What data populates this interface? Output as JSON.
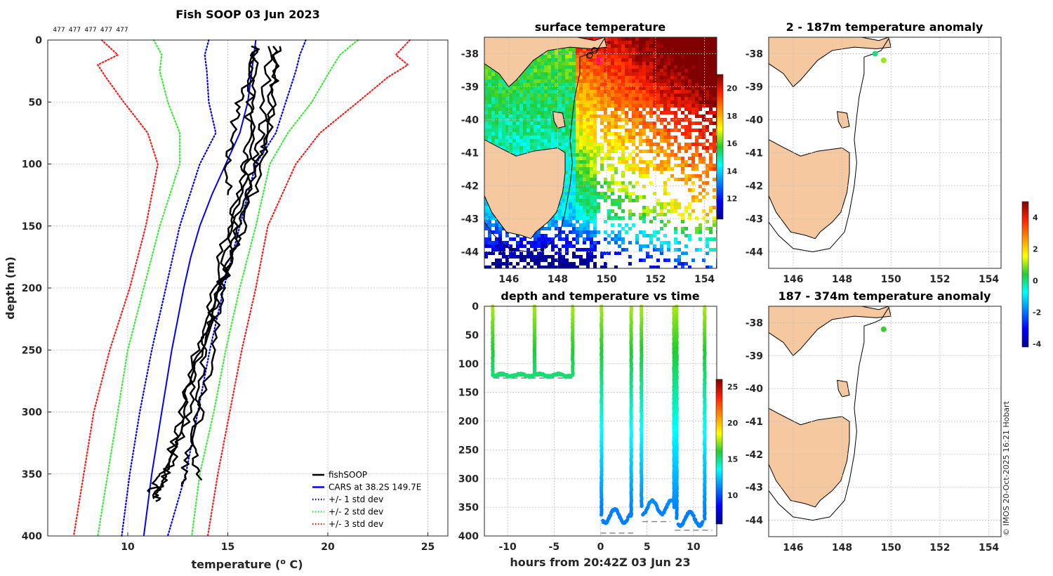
{
  "figure": {
    "main_title": "Fish SOOP 03 Jun 2023",
    "drop_ids": [
      "477",
      "477",
      "477",
      "477",
      "477"
    ],
    "copyright": "© IMOS 20-Oct-2025 16:21 Hobart"
  },
  "colors": {
    "fishsoop": "#000000",
    "cars": "#0000ff",
    "std1": "#0000ff",
    "std2": "#33ee33",
    "std3": "#ff1a1a",
    "land": "#f6c89f",
    "grid": "#bfbfbf",
    "dashes": "#808080"
  },
  "chart_data": [
    {
      "id": "profile",
      "type": "line",
      "title": "Fish SOOP 03 Jun 2023",
      "xlabel": "temperature (°C)",
      "ylabel": "depth (m)",
      "xlim": [
        6,
        26
      ],
      "ylim": [
        0,
        400
      ],
      "y_reversed": true,
      "xticks": [
        10,
        15,
        20,
        25
      ],
      "yticks": [
        0,
        50,
        100,
        150,
        200,
        250,
        300,
        350,
        400
      ],
      "legend_position": "bottom-right",
      "legend": [
        {
          "label": "fishSOOP",
          "style": "solid",
          "color": "#000000"
        },
        {
          "label": "CARS at 38.2S 149.7E",
          "style": "solid",
          "color": "#0000ff"
        },
        {
          "label": "+/- 1 std dev",
          "style": "dotted",
          "color": "#0000ff"
        },
        {
          "label": "+/- 2 std dev",
          "style": "dotted",
          "color": "#33ee33"
        },
        {
          "label": "+/- 3 std dev",
          "style": "dotted",
          "color": "#ff1a1a"
        }
      ],
      "cars": {
        "depth": [
          0,
          25,
          50,
          75,
          100,
          125,
          150,
          175,
          200,
          225,
          250,
          275,
          300,
          325,
          350,
          375,
          400
        ],
        "temp": [
          16.4,
          16.2,
          16.0,
          15.6,
          14.9,
          14.2,
          13.6,
          13.15,
          12.8,
          12.5,
          12.2,
          11.95,
          11.7,
          11.45,
          11.2,
          11.0,
          10.8
        ]
      },
      "std_bands": [
        {
          "name": "std1",
          "depth": [
            0,
            12,
            25,
            50,
            75,
            100,
            150,
            200,
            250,
            300,
            350,
            400
          ],
          "minus": [
            14.05,
            13.85,
            13.95,
            14.05,
            14.4,
            13.6,
            12.6,
            11.9,
            11.2,
            10.6,
            10.1,
            9.7
          ],
          "plus": [
            18.9,
            18.6,
            18.4,
            17.9,
            17.4,
            16.4,
            15.6,
            14.8,
            14.1,
            13.5,
            12.9,
            12.0
          ]
        },
        {
          "name": "std2",
          "depth": [
            0,
            12,
            25,
            50,
            75,
            100,
            150,
            200,
            250,
            300,
            350,
            400
          ],
          "minus": [
            11.3,
            11.7,
            11.6,
            12.0,
            12.6,
            12.6,
            11.6,
            10.8,
            10.0,
            9.5,
            9.0,
            8.5
          ],
          "plus": [
            21.5,
            20.6,
            20.1,
            19.2,
            18.0,
            17.1,
            16.4,
            15.6,
            14.9,
            14.3,
            13.6,
            13.2
          ]
        },
        {
          "name": "std3",
          "depth": [
            0,
            12,
            20,
            30,
            50,
            75,
            100,
            150,
            200,
            250,
            300,
            350,
            400
          ],
          "minus": [
            8.7,
            9.5,
            8.5,
            8.9,
            9.8,
            11.0,
            11.5,
            10.9,
            10.1,
            9.1,
            8.3,
            7.8,
            7.3
          ],
          "plus": [
            24.1,
            23.4,
            24.0,
            23.0,
            21.5,
            19.6,
            18.4,
            17.0,
            16.4,
            15.7,
            15.1,
            14.5,
            14.0
          ]
        }
      ],
      "casts": [
        {
          "depth": [
            5,
            30,
            60,
            90,
            125
          ],
          "temp": [
            16.4,
            16.0,
            15.4,
            15.0,
            15.0
          ]
        },
        {
          "depth": [
            5,
            40,
            80,
            100,
            150,
            200,
            250,
            300,
            340,
            370
          ],
          "temp": [
            17.5,
            17.3,
            17.0,
            16.3,
            15.8,
            14.6,
            13.6,
            13.1,
            12.2,
            11.3
          ]
        },
        {
          "depth": [
            5,
            50,
            90,
            120,
            160,
            210,
            260,
            310,
            350,
            365
          ],
          "temp": [
            16.5,
            16.1,
            15.9,
            15.6,
            14.8,
            14.2,
            13.3,
            12.6,
            11.8,
            11.1
          ]
        },
        {
          "depth": [
            5,
            45,
            95,
            140,
            180,
            230,
            280,
            320,
            360,
            372
          ],
          "temp": [
            17.4,
            17.2,
            16.9,
            15.9,
            15.0,
            14.0,
            13.0,
            12.4,
            11.6,
            11.4
          ]
        },
        {
          "depth": [
            5,
            60,
            100,
            130,
            170,
            220,
            270,
            330,
            355
          ],
          "temp": [
            17.1,
            16.8,
            16.4,
            15.7,
            15.2,
            14.5,
            14.0,
            13.2,
            13.7
          ]
        },
        {
          "depth": [
            10,
            55,
            105,
            150,
            200,
            240,
            290,
            330,
            360
          ],
          "temp": [
            16.3,
            16.2,
            16.0,
            15.3,
            14.6,
            13.9,
            13.5,
            13.0,
            12.7
          ]
        }
      ]
    },
    {
      "id": "sst",
      "type": "heatmap",
      "title": "surface temperature",
      "xlim": [
        145,
        154.5
      ],
      "ylim": [
        -44.5,
        -37.5
      ],
      "xticks": [
        146,
        148,
        150,
        152,
        154
      ],
      "yticks": [
        -38,
        -39,
        -40,
        -41,
        -42,
        -43,
        -44
      ],
      "colorbar": {
        "ticks": [
          12,
          14,
          16,
          18,
          20
        ],
        "range": [
          10.5,
          21
        ]
      }
    },
    {
      "id": "depth_time",
      "type": "scatter",
      "title": "depth and temperature vs time",
      "xlabel": "hours from 20:42Z 03 Jun 23",
      "xlim": [
        -12.5,
        12.5
      ],
      "ylim": [
        0,
        400
      ],
      "y_reversed": true,
      "xticks": [
        -10,
        -5,
        0,
        5,
        10
      ],
      "yticks": [
        0,
        50,
        100,
        150,
        200,
        250,
        300,
        350,
        400
      ],
      "colorbar": {
        "ticks": [
          10,
          15,
          20,
          25
        ],
        "range": [
          6,
          26
        ]
      },
      "dives": [
        {
          "x0": -11.6,
          "x1": -7.1,
          "bottom": 120,
          "kind": "flat"
        },
        {
          "x0": -7.1,
          "x1": -3.0,
          "bottom": 120,
          "kind": "flat"
        },
        {
          "x0": 0.1,
          "x1": 3.3,
          "bottom": 365,
          "kind": "deep"
        },
        {
          "x0": 4.4,
          "x1": 7.9,
          "bottom": 350,
          "kind": "deep"
        },
        {
          "x0": 8.2,
          "x1": 11.2,
          "bottom": 370,
          "kind": "deep"
        }
      ],
      "seabed_dashes": [
        {
          "x0": -11.5,
          "x1": -3.0,
          "depth": 125
        },
        {
          "x0": 0.0,
          "x1": 3.5,
          "depth": 395
        },
        {
          "x0": 4.5,
          "x1": 7.5,
          "depth": 375
        },
        {
          "x0": 8.0,
          "x1": 12.0,
          "depth": 390
        }
      ]
    },
    {
      "id": "anom_upper",
      "type": "scatter",
      "title": "2 - 187m temperature anomaly",
      "xlim": [
        145,
        154.5
      ],
      "ylim": [
        -44.5,
        -37.5
      ],
      "xticks": [
        146,
        148,
        150,
        152,
        154
      ],
      "yticks": [
        -38,
        -39,
        -40,
        -41,
        -42,
        -43,
        -44
      ],
      "points": [
        {
          "lon": 149.35,
          "lat": -38.0,
          "anomaly": 0.0
        },
        {
          "lon": 149.7,
          "lat": -38.2,
          "anomaly": 1.0
        }
      ]
    },
    {
      "id": "anom_lower",
      "type": "scatter",
      "title": "187 - 374m temperature anomaly",
      "xlim": [
        145,
        154.5
      ],
      "ylim": [
        -44.5,
        -37.5
      ],
      "xticks": [
        146,
        148,
        150,
        152,
        154
      ],
      "yticks": [
        -38,
        -39,
        -40,
        -41,
        -42,
        -43,
        -44
      ],
      "points": [
        {
          "lon": 149.7,
          "lat": -38.2,
          "anomaly": 0.5
        }
      ],
      "colorbar": {
        "ticks": [
          4,
          2,
          0,
          -2,
          -4
        ],
        "range": [
          -4.2,
          5.0
        ]
      }
    }
  ]
}
